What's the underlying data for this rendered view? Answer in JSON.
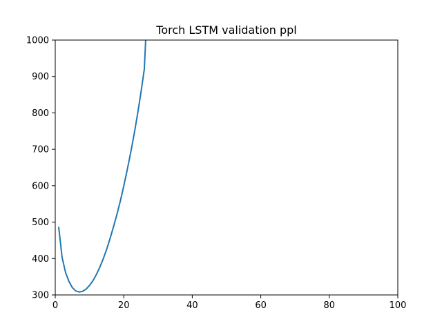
{
  "chart_data": {
    "type": "line",
    "title": "Torch LSTM validation ppl",
    "xlabel": "",
    "ylabel": "",
    "xlim": [
      0,
      100
    ],
    "ylim": [
      300,
      1000
    ],
    "xticks": [
      0,
      20,
      40,
      60,
      80,
      100
    ],
    "yticks": [
      300,
      400,
      500,
      600,
      700,
      800,
      900,
      1000
    ],
    "grid": false,
    "legend": "none",
    "series": [
      {
        "color": "#1f77b4",
        "x": [
          1,
          2,
          3,
          4,
          5,
          6,
          7,
          8,
          9,
          10,
          11,
          12,
          13,
          14,
          15,
          16,
          17,
          18,
          19,
          20,
          21,
          22,
          23,
          24,
          25,
          26,
          26.4
        ],
        "y": [
          487,
          403,
          362,
          337,
          320,
          311,
          308,
          310,
          316,
          326,
          339,
          356,
          376,
          399,
          425,
          455,
          487,
          521,
          558,
          599,
          643,
          690,
          740,
          795,
          855,
          920,
          1000
        ]
      }
    ]
  }
}
